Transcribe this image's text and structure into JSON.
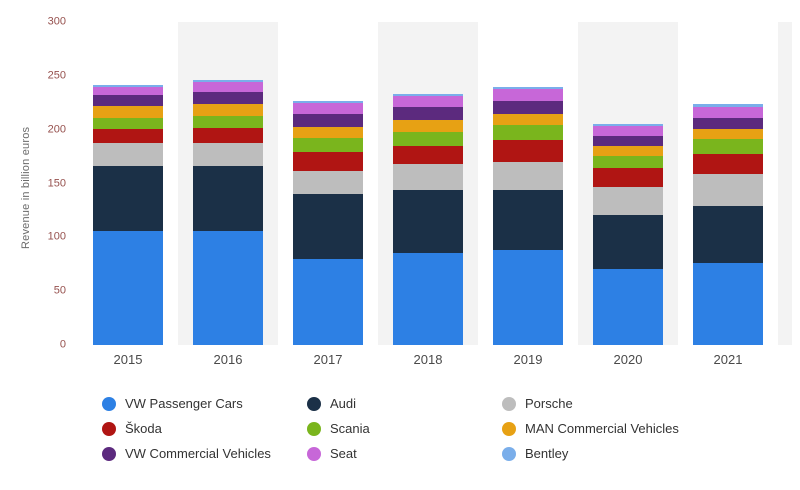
{
  "chart_data": {
    "type": "bar",
    "variant": "stacked",
    "title": "",
    "ylabel": "Revenue in billion euros",
    "ylim": [
      0,
      300
    ],
    "yticks": [
      0,
      50,
      100,
      150,
      200,
      250,
      300
    ],
    "grid": false,
    "legend_position": "bottom",
    "plot_band_color": "#f3f3f3",
    "categories": [
      "2015",
      "2016",
      "2017",
      "2018",
      "2019",
      "2020",
      "2021"
    ],
    "series": [
      {
        "name": "VW Passenger Cars",
        "color": "#2d80e4",
        "values": [
          106,
          106,
          80,
          85,
          88,
          71,
          76
        ]
      },
      {
        "name": "Audi",
        "color": "#1b3047",
        "values": [
          60,
          60,
          60,
          59,
          56,
          50,
          53
        ]
      },
      {
        "name": "Porsche",
        "color": "#bdbdbd",
        "values": [
          22,
          22,
          22,
          24,
          26,
          26,
          30
        ]
      },
      {
        "name": "Škoda",
        "color": "#b01513",
        "values": [
          13,
          14,
          17,
          17,
          20,
          17,
          18
        ]
      },
      {
        "name": "Scania",
        "color": "#7ab51d",
        "values": [
          10,
          11,
          13,
          13,
          14,
          12,
          14
        ]
      },
      {
        "name": "MAN Commercial Vehicles",
        "color": "#e7a114",
        "values": [
          11,
          11,
          11,
          11,
          11,
          9,
          10
        ]
      },
      {
        "name": "VW Commercial Vehicles",
        "color": "#5c2a7e",
        "values": [
          10,
          11,
          12,
          12,
          12,
          9,
          10
        ]
      },
      {
        "name": "Seat",
        "color": "#c767d8",
        "values": [
          8,
          9,
          10,
          10,
          11,
          9,
          10
        ]
      },
      {
        "name": "Bentley",
        "color": "#7aaeea",
        "values": [
          2,
          2,
          2,
          2,
          2,
          2,
          3
        ]
      }
    ]
  }
}
